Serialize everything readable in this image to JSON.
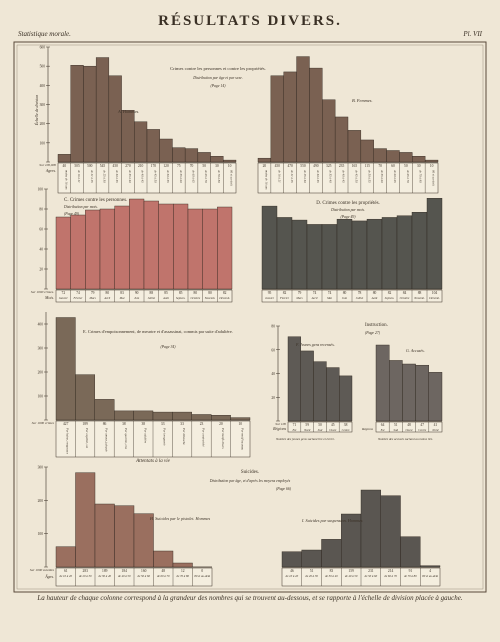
{
  "header": {
    "left": "Statistique morale.",
    "title": "RÉSULTATS DIVERS.",
    "right": "Pl. VII"
  },
  "footer": "La hauteur de chaque colonne correspond à la grandeur des nombres qui se trouvent au-dessous, et se rapporte à l'échelle de division placée à gauche.",
  "chart_data": [
    {
      "id": "A",
      "type": "bar",
      "title": "Crimes contre les personnes et contre les propriétés.",
      "subtitle": "Distribution par âge et par sexe.",
      "source": "(Page 14)",
      "series_label": "A. Hommes.",
      "ylabel": "Échelle de division",
      "row_label": "Agres.",
      "value_label": "Sur 100,000",
      "color": "#7a6152",
      "categories": [
        "moins de 16 ans",
        "de 16 à 21",
        "de 21 à 25",
        "de 25 à 30",
        "de 30 à 35",
        "de 35 à 40",
        "de 40 à 45",
        "de 45 à 50",
        "de 50 à 55",
        "de 55 à 60",
        "de 60 à 65",
        "de 65 à 70",
        "de 70 à 80",
        "80 et au-delà"
      ],
      "values": [
        40,
        505,
        500,
        545,
        450,
        270,
        210,
        170,
        120,
        75,
        70,
        50,
        30,
        10
      ],
      "ylim": [
        0,
        600
      ]
    },
    {
      "id": "B",
      "type": "bar",
      "series_label": "B. Femmes.",
      "color": "#7a6152",
      "categories": [
        "moins de 16 ans",
        "de 16 à 21",
        "de 21 à 25",
        "de 25 à 30",
        "de 30 à 35",
        "de 35 à 40",
        "de 40 à 45",
        "de 45 à 50",
        "de 50 à 55",
        "de 55 à 60",
        "de 60 à 65",
        "de 65 à 70",
        "de 70 à 80",
        "80 et au-delà"
      ],
      "values": [
        20,
        450,
        470,
        550,
        490,
        325,
        235,
        165,
        115,
        70,
        60,
        50,
        30,
        10
      ],
      "ylim": [
        0,
        600
      ]
    },
    {
      "id": "C",
      "type": "bar",
      "title": "C. Crimes contre les personnes.",
      "subtitle": "Distribution par mois.",
      "source": "(Page 49)",
      "row_label": "Mois.",
      "value_label": "Sur 1000 crimes.",
      "color": "#c0746c",
      "categories": [
        "Janvier",
        "Février",
        "Mars",
        "Avril",
        "Mai",
        "Juin",
        "Juillet",
        "Août",
        "Septem.",
        "Octobre",
        "Novemb.",
        "Décemb."
      ],
      "values": [
        72,
        74,
        79,
        80,
        83,
        90,
        88,
        85,
        85,
        80,
        80,
        82
      ],
      "ylim": [
        0,
        100
      ]
    },
    {
      "id": "D",
      "type": "bar",
      "title": "D. Crimes contre les propriétés.",
      "subtitle": "Distribution par mois.",
      "source": "(Page 49)",
      "color": "#55554f",
      "categories": [
        "Janvier",
        "Février",
        "Mars",
        "Avril",
        "Mai",
        "Juin",
        "Juillet",
        "Août",
        "Septem.",
        "Octobre",
        "Novemb.",
        "Décemb."
      ],
      "values": [
        95,
        82,
        79,
        74,
        74,
        80,
        78,
        80,
        82,
        84,
        88,
        104
      ],
      "ylim": [
        0,
        110
      ]
    },
    {
      "id": "E",
      "type": "bar",
      "title": "E. Crimes d'empoisonnement, de meurtre et d'assassinat, commis par suite d'adultère.",
      "source": "(Page 34)",
      "value_label": "Sur 1000 crimes",
      "row_label": "Attentats à la vie",
      "color": "#7a6958",
      "categories": [
        "Par haine, vengeance",
        "Par cupidité, vol",
        "Par amour, jalousie",
        "Par querelle, rixe",
        "Par adultère",
        "Par ivrognerie",
        "Par débauche",
        "Par contrariété",
        "Par motifs divers",
        "Par motif inconnu"
      ],
      "values": [
        427,
        189,
        86,
        38,
        38,
        33,
        33,
        23,
        20,
        10
      ],
      "ylim": [
        0,
        450
      ]
    },
    {
      "id": "F",
      "type": "bar",
      "title": "Instruction.",
      "source": "(Page 27)",
      "series_label": "F. Jeunes gens recensés.",
      "value_label": "Sur 100",
      "row_label": "Régions",
      "note": "Nombre des jeunes gens sachant lire et écrire.",
      "color": "#5e5a55",
      "categories": [
        "Est",
        "Nord",
        "Sud",
        "Ouest",
        "Centre"
      ],
      "values": [
        71,
        59,
        50,
        45,
        38
      ],
      "ylim": [
        0,
        80
      ]
    },
    {
      "id": "G",
      "type": "bar",
      "series_label": "G. Accusés.",
      "row_label": "Régions",
      "note": "Nombre des accusés sachant au moins lire.",
      "color": "#6d6661",
      "categories": [
        "Est",
        "Sud",
        "Ouest",
        "Centre",
        "Nord"
      ],
      "values": [
        64,
        51,
        48,
        47,
        41
      ],
      "ylim": [
        0,
        80
      ]
    },
    {
      "id": "H",
      "type": "bar",
      "title": "Suicides.",
      "subtitle": "Distribution par âge, et d'après les moyens employés",
      "source": "(Page 66)",
      "series_label": "H. Suicides par le pistolet. Hommes",
      "row_label": "Âges.",
      "value_label": "Sur 1000 suicides",
      "color": "#9a6f5f",
      "categories": [
        "de 10 à 20",
        "de 20 à 30",
        "de 30 à 40",
        "de 40 à 50",
        "de 50 à 60",
        "de 60 à 70",
        "de 70 à 80",
        "80 et au-delà"
      ],
      "values": [
        61,
        283,
        189,
        184,
        160,
        48,
        12,
        0
      ],
      "ylim": [
        0,
        300
      ]
    },
    {
      "id": "I",
      "type": "bar",
      "series_label": "I. Suicides par suspension. Hommes",
      "color": "#5a5651",
      "categories": [
        "de 10 à 20",
        "de 20 à 30",
        "de 30 à 40",
        "de 40 à 50",
        "de 50 à 60",
        "de 60 à 70",
        "de 70 à 80",
        "80 et au-delà"
      ],
      "values": [
        46,
        51,
        83,
        159,
        231,
        214,
        91,
        4
      ],
      "ylim": [
        0,
        300
      ]
    }
  ]
}
